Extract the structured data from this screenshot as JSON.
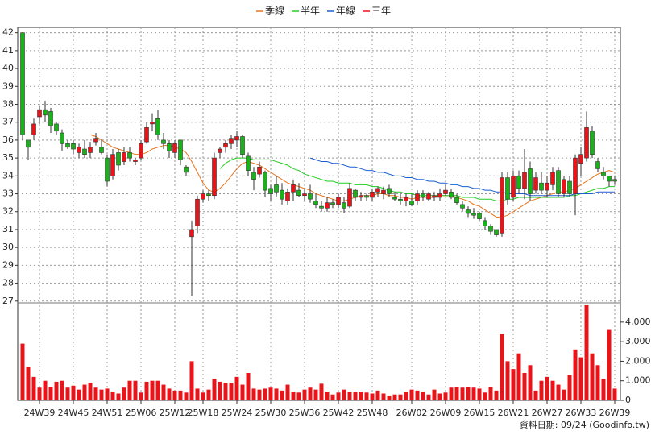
{
  "chart_data": {
    "type": "candlestick",
    "categories": [
      null,
      null,
      null,
      "24W39",
      null,
      null,
      null,
      null,
      null,
      "24W45",
      null,
      null,
      null,
      null,
      null,
      "24W51",
      null,
      null,
      null,
      null,
      null,
      "25W06",
      null,
      null,
      null,
      null,
      null,
      "25W12",
      null,
      null,
      null,
      null,
      "25W18",
      null,
      null,
      null,
      null,
      null,
      "25W24",
      null,
      null,
      null,
      null,
      null,
      "25W30",
      null,
      null,
      null,
      null,
      null,
      "25W36",
      null,
      null,
      null,
      null,
      null,
      "25W42",
      null,
      null,
      null,
      null,
      null,
      "25W48",
      null,
      null,
      null,
      null,
      null,
      null,
      "26W02",
      null,
      null,
      null,
      null,
      null,
      "26W09",
      null,
      null,
      null,
      null,
      null,
      "26W15",
      null,
      null,
      null,
      null,
      null,
      "26W21",
      null,
      null,
      null,
      null,
      null,
      "26W27",
      null,
      null,
      null,
      null,
      null,
      "26W33",
      null,
      null,
      null,
      null,
      null,
      "26W39"
    ],
    "open": [
      42,
      36,
      36.3,
      37.3,
      37.7,
      37.6,
      36.9,
      36.4,
      35.8,
      35.8,
      35.3,
      35.5,
      35.3,
      35.9,
      35.6,
      35,
      34,
      35.3,
      34.8,
      35.3,
      34.8,
      35,
      35.9,
      36.9,
      37.2,
      36,
      35.8,
      35.3,
      36,
      34.5,
      30.6,
      31.2,
      32.7,
      33,
      32.9,
      35.3,
      35.6,
      35.8,
      36,
      36.2,
      35.1,
      34.2,
      34.1,
      34.2,
      33.3,
      33.5,
      33.2,
      32.6,
      33.1,
      33.2,
      32.9,
      33,
      32.6,
      32.3,
      32.2,
      32.5,
      32.4,
      32.5,
      32.3,
      33.2,
      32.8,
      32.9,
      32.8,
      33.1,
      33,
      33.3,
      32.8,
      32.7,
      32.6,
      32.6,
      32.6,
      33,
      32.7,
      32.8,
      32.8,
      33,
      33.1,
      32.8,
      32.4,
      32.1,
      31.9,
      31.9,
      31.5,
      31.2,
      31,
      30.8,
      33.9,
      32.8,
      34,
      33.3,
      34.4,
      33.2,
      33.6,
      33.2,
      33.5,
      34.3,
      33,
      33.7,
      33,
      34.7,
      35,
      36.5,
      34.8,
      34.2,
      34,
      33.8
    ],
    "high": [
      42,
      36,
      37.2,
      37.9,
      38.2,
      37.8,
      37,
      36.6,
      36,
      36,
      35.8,
      36,
      35.9,
      36.4,
      36,
      35.2,
      35.5,
      35.5,
      35.6,
      35.6,
      35,
      36,
      37,
      37.5,
      37.7,
      36.4,
      36,
      36,
      36,
      34.6,
      31.5,
      32.9,
      33.2,
      33.2,
      35.3,
      35.6,
      36,
      36.3,
      36.5,
      36.3,
      35.3,
      34.5,
      34.8,
      34.3,
      33.5,
      34,
      33.6,
      33.3,
      33.8,
      33.6,
      33.3,
      33.5,
      33,
      32.6,
      32.8,
      32.7,
      33,
      32.8,
      33.6,
      33.3,
      33.1,
      33,
      33.3,
      33.4,
      33.4,
      33.5,
      33.1,
      33,
      33,
      33,
      33.2,
      33.2,
      33.1,
      33.1,
      33.3,
      33.5,
      33.3,
      33,
      32.6,
      32.3,
      32.2,
      32,
      31.7,
      31.3,
      31,
      34.2,
      34.2,
      34.3,
      34.3,
      35.5,
      34.8,
      34.2,
      34.2,
      34,
      34.5,
      34.5,
      34,
      34,
      35.2,
      35.6,
      37.6,
      36.8,
      35,
      34.5,
      34,
      34
    ],
    "low": [
      36,
      34.9,
      36,
      36.9,
      37,
      36.4,
      36.3,
      35.4,
      35.5,
      35.2,
      35,
      35,
      35,
      35.7,
      35.2,
      33.4,
      33.8,
      34.3,
      34.6,
      34.8,
      34.6,
      34.9,
      35.8,
      36.5,
      36,
      35.5,
      35,
      35,
      34.6,
      34,
      27.3,
      30.8,
      32.5,
      32.6,
      32.7,
      35,
      35.3,
      35.5,
      35.6,
      35,
      34,
      33.2,
      33.9,
      32.8,
      32.6,
      32.8,
      32.4,
      32.4,
      32.6,
      32.8,
      32.6,
      32.5,
      32.2,
      32,
      32,
      32.2,
      32.2,
      31.9,
      32.2,
      32.6,
      32.6,
      32.6,
      32.6,
      32.8,
      32.7,
      32.8,
      32.6,
      32.4,
      32.3,
      32.3,
      32.4,
      32.6,
      32.6,
      32.6,
      32.6,
      32.9,
      32.7,
      32.4,
      32,
      31.7,
      31.6,
      31.5,
      31,
      30.7,
      30.6,
      30.6,
      32.4,
      32.6,
      33,
      32.7,
      32.6,
      33,
      33,
      32.8,
      33.2,
      32.8,
      32.8,
      32.8,
      31.8,
      34,
      34.8,
      35,
      34.2,
      33.8,
      33.4,
      33.5
    ],
    "close": [
      36.3,
      35.6,
      36.9,
      37.7,
      37.4,
      36.8,
      36.5,
      35.8,
      35.6,
      35.5,
      35.6,
      35.2,
      35.6,
      36.1,
      35.3,
      33.7,
      35.2,
      34.6,
      35.3,
      35,
      34.9,
      35.8,
      36.7,
      37,
      36.3,
      35.8,
      35.4,
      35.8,
      34.9,
      34.2,
      31,
      32.7,
      33,
      32.9,
      35,
      35.5,
      35.8,
      36.1,
      36.2,
      35.2,
      34.3,
      33.8,
      34.5,
      33.2,
      33,
      33.1,
      32.7,
      33.1,
      33.5,
      32.9,
      33,
      32.7,
      32.4,
      32.2,
      32.5,
      32.4,
      32.8,
      32.2,
      33.3,
      32.8,
      32.9,
      32.8,
      33.1,
      33.3,
      33.2,
      33,
      32.7,
      32.6,
      32.8,
      32.4,
      33,
      32.8,
      33,
      32.9,
      33,
      33.2,
      32.8,
      32.5,
      32.2,
      31.9,
      31.8,
      31.6,
      31.2,
      30.9,
      30.7,
      33.9,
      32.7,
      34,
      33.3,
      34.2,
      33,
      33.9,
      33.2,
      33.6,
      34.2,
      33,
      33.8,
      33,
      35,
      35.2,
      36.7,
      35.2,
      34.4,
      34,
      33.7,
      33.7
    ],
    "up_color": "#e8141a",
    "down_color": "#19b319",
    "ylim": [
      26.9,
      42.3
    ],
    "yticks": [
      27,
      28,
      29,
      30,
      31,
      32,
      33,
      34,
      35,
      36,
      37,
      38,
      39,
      40,
      41,
      42
    ],
    "grid": true,
    "series": [
      {
        "name": "季線",
        "color": "#e8731a",
        "values": [
          null,
          null,
          null,
          null,
          null,
          null,
          null,
          null,
          null,
          null,
          null,
          null,
          36.3,
          36.2,
          36.0,
          35.8,
          35.6,
          35.5,
          35.4,
          35.3,
          35.2,
          35.2,
          35.3,
          35.5,
          35.6,
          35.7,
          35.7,
          35.6,
          35.5,
          35.3,
          34.8,
          34.2,
          33.6,
          33.2,
          33.1,
          33.3,
          33.6,
          34.0,
          34.4,
          34.7,
          34.8,
          34.7,
          34.6,
          34.4,
          34.2,
          34.0,
          33.8,
          33.6,
          33.5,
          33.4,
          33.3,
          33.2,
          33.0,
          32.9,
          32.8,
          32.7,
          32.6,
          32.6,
          32.7,
          32.8,
          32.9,
          32.9,
          32.9,
          33.0,
          33.0,
          32.9,
          32.9,
          32.8,
          32.8,
          32.7,
          32.8,
          32.8,
          32.8,
          32.8,
          32.9,
          32.9,
          32.9,
          32.8,
          32.7,
          32.6,
          32.4,
          32.3,
          32.1,
          31.9,
          31.7,
          31.7,
          31.8,
          32.0,
          32.2,
          32.4,
          32.6,
          32.7,
          32.8,
          32.9,
          33.0,
          33.1,
          33.1,
          33.2,
          33.3,
          33.5,
          33.7,
          33.9,
          34.1,
          34.2,
          34.3,
          34.2
        ]
      },
      {
        "name": "半年",
        "color": "#22cc22",
        "values": [
          null,
          null,
          null,
          null,
          null,
          null,
          null,
          null,
          null,
          null,
          null,
          null,
          null,
          null,
          null,
          null,
          null,
          null,
          null,
          null,
          null,
          null,
          null,
          null,
          null,
          null,
          null,
          null,
          null,
          null,
          null,
          null,
          null,
          null,
          null,
          34.4,
          34.7,
          34.9,
          35.0,
          35.0,
          35.0,
          34.9,
          34.9,
          34.9,
          34.9,
          34.8,
          34.7,
          34.6,
          34.4,
          34.3,
          34.1,
          34.0,
          33.9,
          33.8,
          33.7,
          33.7,
          33.6,
          33.6,
          33.6,
          33.5,
          33.5,
          33.5,
          33.4,
          33.4,
          33.3,
          33.2,
          33.1,
          33.1,
          33.0,
          33.0,
          32.9,
          32.9,
          32.9,
          32.9,
          32.9,
          32.9,
          32.9,
          32.9,
          32.8,
          32.8,
          32.8,
          32.7,
          32.7,
          32.7,
          32.6,
          32.6,
          32.7,
          32.7,
          32.8,
          32.8,
          32.8,
          32.8,
          32.8,
          32.8,
          32.8,
          32.8,
          32.8,
          32.9,
          32.9,
          33.0,
          33.1,
          33.2,
          33.3,
          33.3,
          33.4,
          33.4
        ]
      },
      {
        "name": "年線",
        "color": "#1a5fd0",
        "values": [
          null,
          null,
          null,
          null,
          null,
          null,
          null,
          null,
          null,
          null,
          null,
          null,
          null,
          null,
          null,
          null,
          null,
          null,
          null,
          null,
          null,
          null,
          null,
          null,
          null,
          null,
          null,
          null,
          null,
          null,
          null,
          null,
          null,
          null,
          null,
          null,
          null,
          null,
          null,
          null,
          null,
          null,
          null,
          null,
          null,
          null,
          null,
          null,
          null,
          null,
          null,
          35.0,
          34.9,
          34.8,
          34.8,
          34.7,
          34.7,
          34.6,
          34.5,
          34.5,
          34.4,
          34.3,
          34.3,
          34.2,
          34.2,
          34.1,
          34.0,
          34.0,
          33.9,
          33.9,
          33.8,
          33.8,
          33.7,
          33.7,
          33.6,
          33.6,
          33.5,
          33.5,
          33.4,
          33.4,
          33.3,
          33.3,
          33.2,
          33.2,
          33.1,
          33.1,
          33.0,
          33.0,
          33.0,
          33.0,
          32.9,
          32.9,
          32.9,
          32.9,
          32.9,
          32.9,
          32.9,
          32.9,
          33.0,
          33.0,
          33.0,
          33.0,
          33.1,
          33.1,
          33.1,
          33.1
        ]
      },
      {
        "name": "三年",
        "color": "#e8141a",
        "values": [
          null,
          null,
          null,
          null,
          null,
          null,
          null,
          null,
          null,
          null,
          null,
          null,
          null,
          null,
          null,
          null,
          null,
          null,
          null,
          null,
          null,
          null,
          null,
          null,
          null,
          null,
          null,
          null,
          null,
          null,
          null,
          null,
          null,
          null,
          null,
          null,
          null,
          null,
          null,
          null,
          null,
          null,
          null,
          null,
          null,
          null,
          null,
          null,
          null,
          null,
          null,
          null,
          null,
          null,
          null,
          null,
          null,
          null,
          null,
          null,
          null,
          null,
          null,
          null,
          null,
          null,
          null,
          null,
          null,
          null,
          null,
          null,
          null,
          null,
          null,
          null,
          null,
          null,
          null,
          null,
          null,
          null,
          null,
          null,
          null,
          null,
          null,
          null,
          null,
          null,
          null,
          null,
          null,
          null,
          null,
          null,
          null,
          null,
          null,
          null,
          null,
          null,
          null,
          null,
          null,
          null
        ]
      }
    ],
    "volume": {
      "color": "#e8141a",
      "values": [
        2900,
        1700,
        1200,
        650,
        1000,
        700,
        950,
        1000,
        650,
        750,
        550,
        800,
        900,
        650,
        550,
        600,
        450,
        350,
        650,
        1000,
        1000,
        400,
        950,
        1000,
        1000,
        800,
        600,
        500,
        500,
        400,
        2000,
        600,
        400,
        550,
        1100,
        950,
        900,
        900,
        1200,
        800,
        1400,
        600,
        550,
        600,
        650,
        600,
        500,
        800,
        450,
        400,
        550,
        650,
        550,
        850,
        450,
        300,
        400,
        550,
        450,
        450,
        450,
        400,
        350,
        500,
        350,
        250,
        300,
        300,
        450,
        550,
        500,
        450,
        300,
        550,
        350,
        400,
        650,
        700,
        650,
        700,
        650,
        600,
        400,
        700,
        500,
        3400,
        2000,
        1600,
        2400,
        1400,
        1800,
        500,
        1000,
        1200,
        1000,
        800,
        550,
        1300,
        2600,
        2200,
        4900,
        2400,
        1800,
        1100,
        3600,
        600
      ],
      "ylim": [
        0,
        4900
      ],
      "yticks": [
        0,
        {
          "value": 1000,
          "label": "1,000"
        },
        {
          "value": 2000,
          "label": "2,000"
        },
        {
          "value": 3000,
          "label": "3,000"
        },
        {
          "value": 4000,
          "label": "4,000"
        }
      ]
    },
    "footer": "資料日期: 09/24  (Goodinfo.tw)"
  }
}
